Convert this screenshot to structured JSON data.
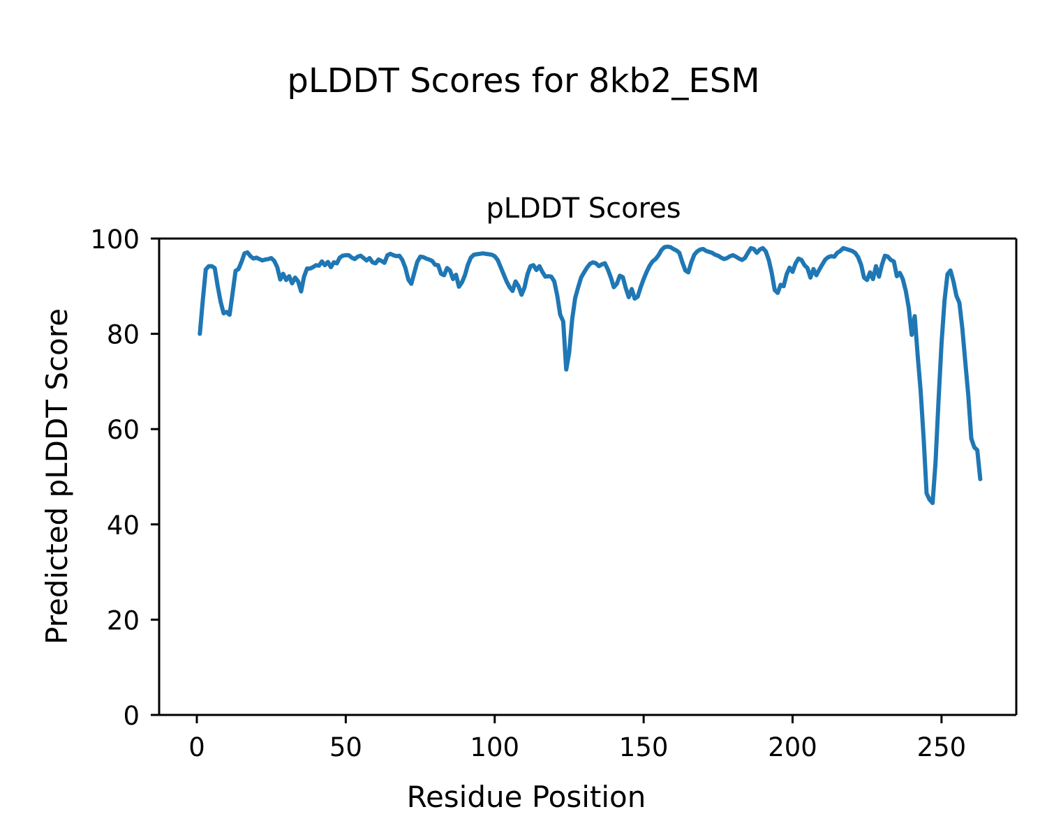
{
  "figure": {
    "suptitle": "pLDDT Scores for 8kb2_ESM",
    "background": "#ffffff"
  },
  "chart_data": {
    "type": "line",
    "title": "pLDDT Scores",
    "xlabel": "Residue Position",
    "ylabel": "Predicted pLDDT Score",
    "xticks": [
      0,
      50,
      100,
      150,
      200,
      250
    ],
    "yticks": [
      0,
      20,
      40,
      60,
      80,
      100
    ],
    "xlim": [
      -12.65,
      275.1
    ],
    "ylim": [
      0,
      100
    ],
    "grid": false,
    "legend": "none",
    "axis_color": "#000000",
    "series": [
      {
        "name": "pLDDT",
        "color": "#1f77b4",
        "line_width": 6,
        "x": [
          1,
          2,
          3,
          4,
          5,
          6,
          7,
          8,
          9,
          10,
          11,
          12,
          13,
          14,
          15,
          16,
          17,
          18,
          19,
          20,
          21,
          22,
          23,
          24,
          25,
          26,
          27,
          28,
          29,
          30,
          31,
          32,
          33,
          34,
          35,
          36,
          37,
          38,
          39,
          40,
          41,
          42,
          43,
          44,
          45,
          46,
          47,
          48,
          49,
          50,
          51,
          52,
          53,
          54,
          55,
          56,
          57,
          58,
          59,
          60,
          61,
          62,
          63,
          64,
          65,
          66,
          67,
          68,
          69,
          70,
          71,
          72,
          73,
          74,
          75,
          76,
          77,
          78,
          79,
          80,
          81,
          82,
          83,
          84,
          85,
          86,
          87,
          88,
          89,
          90,
          91,
          92,
          93,
          94,
          95,
          96,
          97,
          98,
          99,
          100,
          101,
          102,
          103,
          104,
          105,
          106,
          107,
          108,
          109,
          110,
          111,
          112,
          113,
          114,
          115,
          116,
          117,
          118,
          119,
          120,
          121,
          122,
          123,
          124,
          125,
          126,
          127,
          128,
          129,
          130,
          131,
          132,
          133,
          134,
          135,
          136,
          137,
          138,
          139,
          140,
          141,
          142,
          143,
          144,
          145,
          146,
          147,
          148,
          149,
          150,
          151,
          152,
          153,
          154,
          155,
          156,
          157,
          158,
          159,
          160,
          161,
          162,
          163,
          164,
          165,
          166,
          167,
          168,
          169,
          170,
          171,
          172,
          173,
          174,
          175,
          176,
          177,
          178,
          179,
          180,
          181,
          182,
          183,
          184,
          185,
          186,
          187,
          188,
          189,
          190,
          191,
          192,
          193,
          194,
          195,
          196,
          197,
          198,
          199,
          200,
          201,
          202,
          203,
          204,
          205,
          206,
          207,
          208,
          209,
          210,
          211,
          212,
          213,
          214,
          215,
          216,
          217,
          218,
          219,
          220,
          221,
          222,
          223,
          224,
          225,
          226,
          227,
          228,
          229,
          230,
          231,
          232,
          233,
          234,
          235,
          236,
          237,
          238,
          239,
          240,
          241,
          242,
          243,
          244,
          245,
          246,
          247,
          248,
          249,
          250,
          251,
          252,
          253,
          254,
          255,
          256,
          257,
          258,
          259,
          260,
          261,
          262,
          263
        ],
        "y": [
          80.0,
          87.0,
          93.5,
          94.2,
          94.2,
          93.8,
          90.0,
          86.7,
          84.3,
          84.6,
          84.0,
          88.5,
          93.2,
          93.6,
          95.1,
          96.9,
          97.1,
          96.3,
          95.8,
          96.0,
          95.7,
          95.4,
          95.6,
          95.7,
          95.9,
          95.3,
          94.0,
          91.4,
          92.6,
          91.3,
          92.1,
          90.6,
          91.8,
          91.0,
          88.9,
          92.0,
          93.7,
          93.7,
          94.0,
          94.4,
          94.3,
          95.2,
          94.4,
          95.1,
          94.0,
          95.0,
          94.8,
          96.0,
          96.4,
          96.5,
          96.5,
          96.0,
          95.7,
          96.2,
          96.4,
          95.9,
          95.4,
          95.9,
          95.0,
          94.8,
          95.6,
          95.3,
          94.9,
          96.5,
          96.8,
          96.5,
          96.3,
          96.4,
          95.5,
          93.9,
          91.4,
          90.5,
          92.8,
          95.1,
          96.2,
          96.1,
          95.8,
          95.6,
          95.3,
          94.5,
          94.4,
          92.6,
          92.3,
          93.8,
          93.3,
          91.5,
          92.4,
          89.9,
          90.8,
          92.3,
          94.5,
          96.0,
          96.6,
          96.7,
          96.8,
          96.9,
          96.8,
          96.7,
          96.6,
          96.3,
          95.5,
          94.0,
          92.5,
          91.0,
          89.8,
          89.0,
          91.0,
          90.0,
          88.2,
          89.7,
          92.5,
          94.2,
          94.4,
          93.4,
          94.2,
          93.0,
          92.0,
          92.1,
          92.0,
          91.0,
          88.0,
          84.0,
          82.6,
          72.5,
          76.0,
          83.0,
          87.5,
          89.7,
          91.8,
          92.9,
          93.9,
          94.7,
          95.0,
          94.8,
          94.2,
          94.6,
          94.8,
          93.5,
          91.8,
          89.8,
          90.5,
          92.2,
          91.9,
          89.6,
          87.7,
          89.4,
          87.4,
          87.8,
          89.8,
          91.5,
          93.0,
          94.3,
          95.2,
          95.7,
          96.5,
          97.6,
          98.2,
          98.3,
          98.2,
          97.8,
          97.5,
          97.0,
          95.0,
          93.3,
          92.9,
          95.0,
          96.6,
          97.3,
          97.7,
          97.8,
          97.4,
          97.2,
          97.0,
          96.6,
          96.4,
          96.0,
          95.7,
          95.9,
          96.3,
          96.5,
          96.2,
          95.8,
          95.5,
          95.9,
          97.0,
          98.0,
          97.8,
          97.0,
          97.7,
          98.0,
          97.3,
          95.5,
          92.8,
          89.2,
          88.6,
          90.3,
          90.0,
          92.5,
          93.9,
          93.0,
          94.8,
          95.8,
          95.5,
          94.4,
          93.8,
          91.8,
          93.6,
          92.3,
          93.5,
          94.6,
          95.6,
          96.1,
          96.3,
          96.2,
          97.0,
          97.4,
          98.0,
          97.8,
          97.6,
          97.4,
          97.0,
          96.1,
          94.5,
          91.8,
          91.3,
          92.9,
          91.5,
          94.2,
          92.0,
          94.5,
          96.4,
          96.2,
          95.5,
          95.2,
          92.1,
          92.8,
          91.5,
          89.0,
          85.5,
          79.8,
          83.7,
          75.5,
          68.0,
          58.0,
          46.5,
          45.2,
          44.5,
          53.0,
          66.0,
          78.0,
          87.0,
          92.5,
          93.3,
          91.0,
          88.0,
          86.5,
          81.0,
          74.0,
          67.0,
          58.0,
          56.2,
          55.6,
          49.5
        ]
      }
    ]
  }
}
